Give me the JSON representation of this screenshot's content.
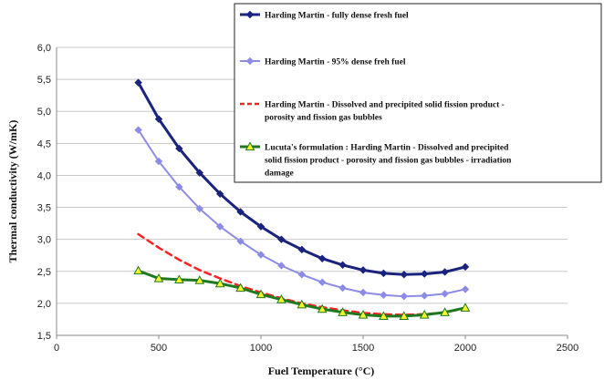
{
  "chart_data": {
    "type": "line",
    "title": "",
    "xlabel": "Fuel Temperature (°C)",
    "ylabel": "Thermal conductivity (W/mK)",
    "xlim": [
      0,
      2500
    ],
    "ylim": [
      1.5,
      6.0
    ],
    "xticks": [
      0,
      500,
      1000,
      1500,
      2000,
      2500
    ],
    "xtick_labels": [
      "0",
      "500",
      "1000",
      "1500",
      "2000",
      "2500"
    ],
    "yticks": [
      1.5,
      2.0,
      2.5,
      3.0,
      3.5,
      4.0,
      4.5,
      5.0,
      5.5,
      6.0
    ],
    "ytick_labels": [
      "1,5",
      "2,0",
      "2,5",
      "3,0",
      "3,5",
      "4,0",
      "4,5",
      "5,0",
      "5,5",
      "6,0"
    ],
    "grid": "horizontal",
    "legend_position": "top-right",
    "x": [
      400,
      500,
      600,
      700,
      800,
      900,
      1000,
      1100,
      1200,
      1300,
      1400,
      1500,
      1600,
      1700,
      1800,
      1900,
      2000
    ],
    "series": [
      {
        "name": "Harding Martin - fully dense fresh fuel",
        "legend_lines": [
          "Harding Martin - fully dense fresh fuel"
        ],
        "color": "#1a237e",
        "line_width": 3,
        "dash": "",
        "marker": "diamond",
        "marker_fill": "#1a237e",
        "values": [
          5.45,
          4.88,
          4.42,
          4.04,
          3.71,
          3.43,
          3.2,
          3.0,
          2.84,
          2.7,
          2.6,
          2.52,
          2.47,
          2.45,
          2.46,
          2.49,
          2.57
        ]
      },
      {
        "name": "Harding Martin - 95% dense freh fuel",
        "legend_lines": [
          "Harding Martin - 95% dense freh fuel"
        ],
        "color": "#8c8ce6",
        "line_width": 2,
        "dash": "",
        "marker": "diamond",
        "marker_fill": "#8c8ce6",
        "values": [
          4.71,
          4.22,
          3.82,
          3.48,
          3.2,
          2.97,
          2.76,
          2.59,
          2.45,
          2.33,
          2.24,
          2.17,
          2.13,
          2.11,
          2.12,
          2.15,
          2.22
        ]
      },
      {
        "name": "Harding Martin - Dissolved and precipited solid fission product - porosity and fission gas bubbles",
        "legend_lines": [
          "Harding Martin - Dissolved and precipited solid fission product -",
          "porosity and fission gas bubbles"
        ],
        "color": "#ff2222",
        "line_width": 2.5,
        "dash": "7,5",
        "marker": "none",
        "marker_fill": "none",
        "values": [
          3.08,
          2.87,
          2.68,
          2.52,
          2.39,
          2.27,
          2.17,
          2.08,
          2.0,
          1.94,
          1.89,
          1.85,
          1.83,
          1.82,
          1.83,
          1.86,
          1.92
        ]
      },
      {
        "name": "Lucuta's formulation : Harding Martin - Dissolved and precipited solid fission product - porosity and fission gas bubbles - irradiation damage",
        "legend_lines": [
          "Lucuta's formulation : Harding Martin - Dissolved and precipited",
          "solid fission product - porosity and fission gas bubbles - irradiation",
          "damage"
        ],
        "color": "#1f7a1f",
        "line_width": 3,
        "dash": "",
        "marker": "triangle",
        "marker_fill": "#f5f52a",
        "values": [
          2.51,
          2.39,
          2.37,
          2.36,
          2.31,
          2.24,
          2.14,
          2.06,
          1.98,
          1.91,
          1.86,
          1.82,
          1.8,
          1.8,
          1.82,
          1.86,
          1.93
        ]
      }
    ]
  }
}
